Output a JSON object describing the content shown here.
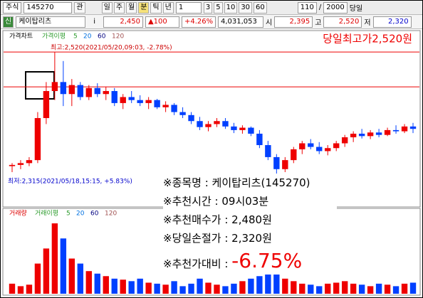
{
  "toolbar": {
    "market": "주식",
    "code": "145270",
    "flag": "관",
    "periods": [
      "일",
      "주",
      "월",
      "분",
      "틱",
      "년"
    ],
    "unit": "1",
    "minutes": [
      "3",
      "5",
      "10",
      "30",
      "60"
    ],
    "count": "110",
    "total": "2000",
    "today": "당일"
  },
  "quote": {
    "badge": "신",
    "name": "케이탑리츠",
    "info": "i",
    "price": "2,450",
    "change": "▲100",
    "rate": "+4.26%",
    "volume": "4,031,053",
    "open_label": "시",
    "open": "2,395",
    "high_label": "고",
    "high": "2,520",
    "low_label": "저",
    "low": "2,320"
  },
  "price_chart": {
    "legend": "가격차트",
    "ma_label": "가격이평",
    "ma_periods": [
      "5",
      "20",
      "60",
      "120"
    ],
    "high_note": "최고:2,520(2021/05/20,09:03, -2.78%)",
    "low_note": "최저:2,315(2021/05/18,15:15, +5.83%)",
    "headline": "당일최고가2,520원",
    "ylim": [
      2262,
      2532
    ],
    "ref_lines": [
      2520,
      2462
    ],
    "candles": [
      [
        2330,
        2335,
        2320,
        2332
      ],
      [
        2332,
        2340,
        2325,
        2335
      ],
      [
        2335,
        2345,
        2330,
        2340
      ],
      [
        2340,
        2420,
        2335,
        2410
      ],
      [
        2410,
        2470,
        2400,
        2455
      ],
      [
        2455,
        2520,
        2440,
        2470
      ],
      [
        2470,
        2505,
        2430,
        2450
      ],
      [
        2450,
        2475,
        2430,
        2465
      ],
      [
        2465,
        2470,
        2440,
        2445
      ],
      [
        2445,
        2465,
        2440,
        2460
      ],
      [
        2460,
        2468,
        2445,
        2450
      ],
      [
        2450,
        2462,
        2440,
        2455
      ],
      [
        2455,
        2460,
        2430,
        2435
      ],
      [
        2435,
        2450,
        2425,
        2445
      ],
      [
        2445,
        2455,
        2435,
        2440
      ],
      [
        2440,
        2448,
        2430,
        2435
      ],
      [
        2435,
        2445,
        2425,
        2440
      ],
      [
        2440,
        2442,
        2425,
        2428
      ],
      [
        2428,
        2438,
        2420,
        2432
      ],
      [
        2432,
        2435,
        2415,
        2420
      ],
      [
        2420,
        2428,
        2410,
        2415
      ],
      [
        2415,
        2420,
        2400,
        2405
      ],
      [
        2405,
        2412,
        2390,
        2395
      ],
      [
        2395,
        2405,
        2388,
        2400
      ],
      [
        2400,
        2410,
        2395,
        2405
      ],
      [
        2405,
        2410,
        2392,
        2396
      ],
      [
        2396,
        2402,
        2385,
        2390
      ],
      [
        2390,
        2398,
        2384,
        2394
      ],
      [
        2394,
        2396,
        2380,
        2384
      ],
      [
        2384,
        2390,
        2360,
        2365
      ],
      [
        2365,
        2372,
        2340,
        2345
      ],
      [
        2345,
        2350,
        2315,
        2325
      ],
      [
        2325,
        2345,
        2320,
        2340
      ],
      [
        2340,
        2362,
        2335,
        2358
      ],
      [
        2358,
        2372,
        2350,
        2368
      ],
      [
        2368,
        2375,
        2358,
        2362
      ],
      [
        2362,
        2370,
        2350,
        2355
      ],
      [
        2355,
        2365,
        2348,
        2360
      ],
      [
        2360,
        2372,
        2355,
        2368
      ],
      [
        2368,
        2382,
        2362,
        2378
      ],
      [
        2378,
        2388,
        2370,
        2384
      ],
      [
        2384,
        2392,
        2376,
        2380
      ],
      [
        2380,
        2390,
        2375,
        2386
      ],
      [
        2386,
        2392,
        2378,
        2382
      ],
      [
        2382,
        2394,
        2380,
        2390
      ],
      [
        2390,
        2398,
        2384,
        2388
      ],
      [
        2388,
        2400,
        2385,
        2396
      ],
      [
        2396,
        2402,
        2385,
        2392
      ]
    ]
  },
  "volume_chart": {
    "legend": "거래량",
    "ma_label": "거래이평",
    "ma_periods": [
      "5",
      "20",
      "60",
      "120"
    ],
    "ylim": [
      0,
      150
    ],
    "values": [
      20,
      15,
      18,
      60,
      90,
      140,
      110,
      70,
      60,
      45,
      40,
      35,
      30,
      28,
      25,
      30,
      22,
      20,
      18,
      25,
      15,
      20,
      30,
      22,
      18,
      15,
      20,
      25,
      30,
      35,
      40,
      45,
      30,
      25,
      20,
      18,
      15,
      20,
      22,
      25,
      20,
      18,
      15,
      20,
      18,
      15,
      20,
      22
    ]
  },
  "overlay": {
    "lines": [
      "※종목명 : 케이탑리츠(145270)",
      "※추천시간 : 09시03분",
      "※추천매수가 : 2,480원",
      "※당일손절가 : 2,320원"
    ],
    "result_label": "※추천가대비 : ",
    "result": "-6.75%"
  }
}
